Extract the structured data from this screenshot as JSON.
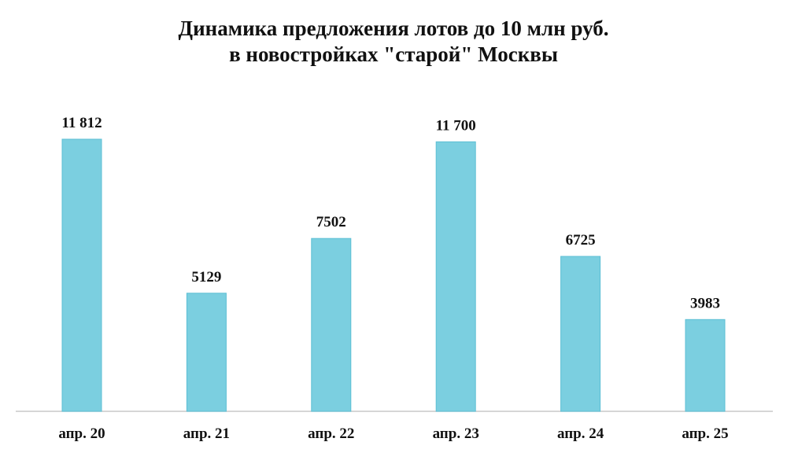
{
  "chart_data": {
    "type": "bar",
    "title": [
      "Динамика предложения лотов до 10 млн руб.",
      "в новостройках \"старой\" Москвы"
    ],
    "categories": [
      "апр. 20",
      "апр. 21",
      "апр. 22",
      "апр. 23",
      "апр. 24",
      "апр. 25"
    ],
    "values": [
      11812,
      5129,
      7502,
      11700,
      6725,
      3983
    ],
    "data_labels": [
      "11 812",
      "5129",
      "7502",
      "11 700",
      "6725",
      "3983"
    ],
    "xlabel": "",
    "ylabel": "",
    "ylim": [
      0,
      12000
    ],
    "grid": false,
    "legend": "none",
    "colors": {
      "bar_fill": "#7bcfe0",
      "bar_stroke": "#5cbfd4",
      "axis": "#c8c8c8",
      "text": "#111111"
    }
  }
}
